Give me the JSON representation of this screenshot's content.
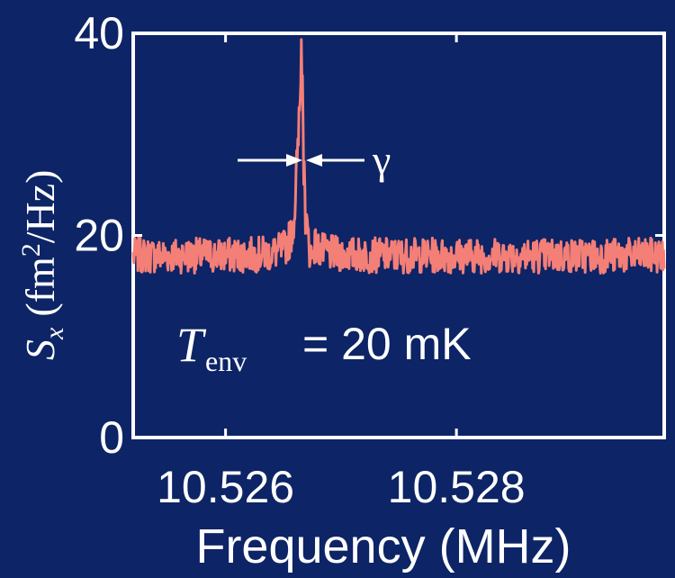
{
  "chart_data": {
    "type": "line",
    "title": "",
    "xlabel": "Frequency (MHz)",
    "ylabel_symbol": "S",
    "ylabel_subscript": "x",
    "ylabel_units_open": "(fm",
    "ylabel_units_power": "2",
    "ylabel_units_close": "/Hz)",
    "xlim": [
      10.5252,
      10.5298
    ],
    "ylim": [
      0,
      40
    ],
    "xticks": [
      10.526,
      10.528
    ],
    "xtick_labels": [
      "10.526",
      "10.528"
    ],
    "yticks": [
      0,
      20,
      40
    ],
    "ytick_labels": [
      "0",
      "20",
      "40"
    ],
    "grid": false,
    "series": [
      {
        "color": "#f47f77",
        "noise_floor": 18,
        "noise_peak_to_peak": 3.5,
        "peak_center": 10.52665,
        "peak_height": 36.5,
        "peak_linewidth_gamma": 6e-05
      }
    ],
    "annotations": {
      "gamma_symbol": "γ",
      "temperature_symbol": "T",
      "temperature_subscript": "env",
      "temperature_value": "= 20 mK"
    }
  },
  "colors": {
    "background": "#0d2466",
    "axes": "#ffffff",
    "trace": "#f47f77"
  }
}
